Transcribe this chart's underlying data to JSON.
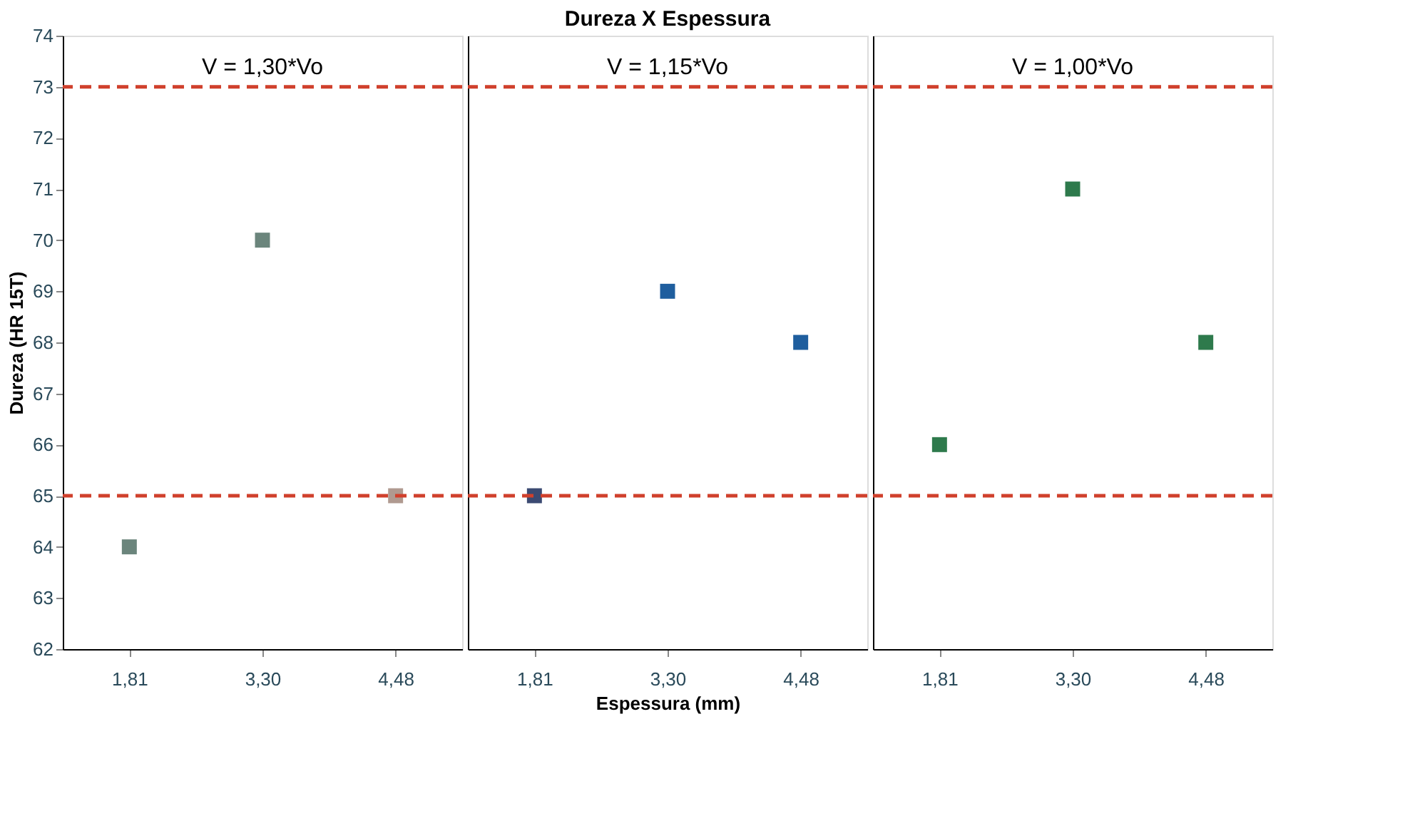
{
  "chart_data": [
    {
      "type": "scatter",
      "ylabel": "Dureza (HR 15T)",
      "marker": "square",
      "categories": [
        "1,81",
        "3,30",
        "4,48"
      ],
      "values": [
        64,
        70,
        65
      ],
      "colors": [
        "#6b857c",
        "#6b857c",
        "#b09a90"
      ],
      "ylim": [
        62,
        74
      ],
      "yticks": [
        62,
        63,
        64,
        65,
        66,
        67,
        68,
        69,
        70,
        71,
        72,
        73,
        74
      ],
      "grid": false,
      "annotations": [
        "V = 1,30*Vo"
      ],
      "ref_lines": [
        {
          "axis": "y",
          "value": 73,
          "color": "#d0402c",
          "line_style": "dashed"
        },
        {
          "axis": "y",
          "value": 65,
          "color": "#d0402c",
          "line_style": "dashed"
        }
      ]
    },
    {
      "type": "scatter",
      "title": "Dureza X Espessura",
      "xlabel": "Espessura (mm)",
      "marker": "square",
      "categories": [
        "1,81",
        "3,30",
        "4,48"
      ],
      "values": [
        65,
        69,
        68
      ],
      "colors": [
        "#3b4a72",
        "#1f5e9e",
        "#1f5e9e"
      ],
      "ylim": [
        62,
        74
      ],
      "tick_labels": "x",
      "grid": false,
      "annotations": [
        "V = 1,15*Vo"
      ],
      "ref_lines": [
        {
          "axis": "y",
          "value": 73,
          "color": "#d0402c",
          "line_style": "dashed"
        },
        {
          "axis": "y",
          "value": 65,
          "color": "#d0402c",
          "line_style": "dashed"
        }
      ]
    },
    {
      "type": "scatter",
      "marker": "square",
      "categories": [
        "1,81",
        "3,30",
        "4,48"
      ],
      "values": [
        66,
        71,
        68
      ],
      "colors": [
        "#2e7a4c",
        "#2e7a4c",
        "#2e7a4c"
      ],
      "ylim": [
        62,
        74
      ],
      "tick_labels": "x",
      "grid": false,
      "annotations": [
        "V = 1,00*Vo"
      ],
      "ref_lines": [
        {
          "axis": "y",
          "value": 73,
          "color": "#d0402c",
          "line_style": "dashed"
        },
        {
          "axis": "y",
          "value": 65,
          "color": "#d0402c",
          "line_style": "dashed"
        }
      ]
    }
  ]
}
